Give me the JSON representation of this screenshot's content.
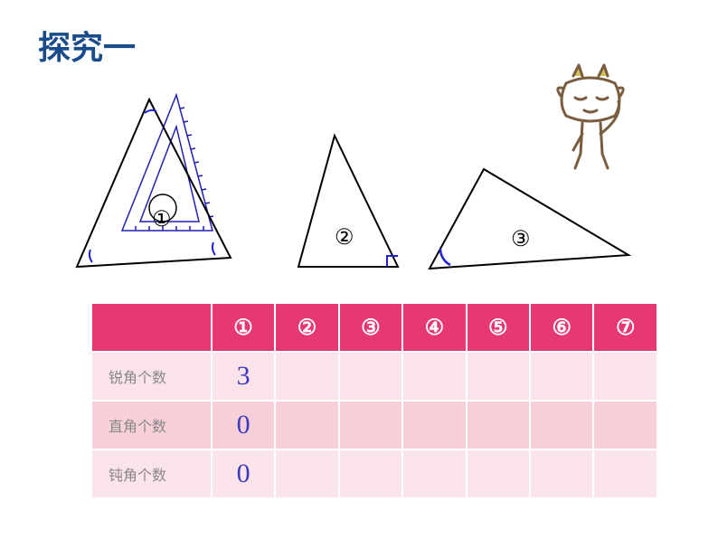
{
  "title": "探究一",
  "triangles": {
    "t1": {
      "label": "①"
    },
    "t2": {
      "label": "②"
    },
    "t3": {
      "label": "③"
    }
  },
  "table": {
    "header_bg": "#e63874",
    "header_color": "#ffffff",
    "row_bg_even": "#fbe3ea",
    "row_bg_odd": "#f7cfd9",
    "columns": [
      "①",
      "②",
      "③",
      "④",
      "⑤",
      "⑥",
      "⑦"
    ],
    "rows": [
      {
        "label": "锐角个数",
        "values": [
          "3",
          "",
          "",
          "",
          "",
          "",
          ""
        ]
      },
      {
        "label": "直角个数",
        "values": [
          "0",
          "",
          "",
          "",
          "",
          "",
          ""
        ]
      },
      {
        "label": "钝角个数",
        "values": [
          "0",
          "",
          "",
          "",
          "",
          "",
          ""
        ]
      }
    ]
  },
  "triangle_stroke": "#000000",
  "angle_marker_color": "#2020d0",
  "ruler_color": "#2020b0",
  "character_color": "#7a5c3e"
}
